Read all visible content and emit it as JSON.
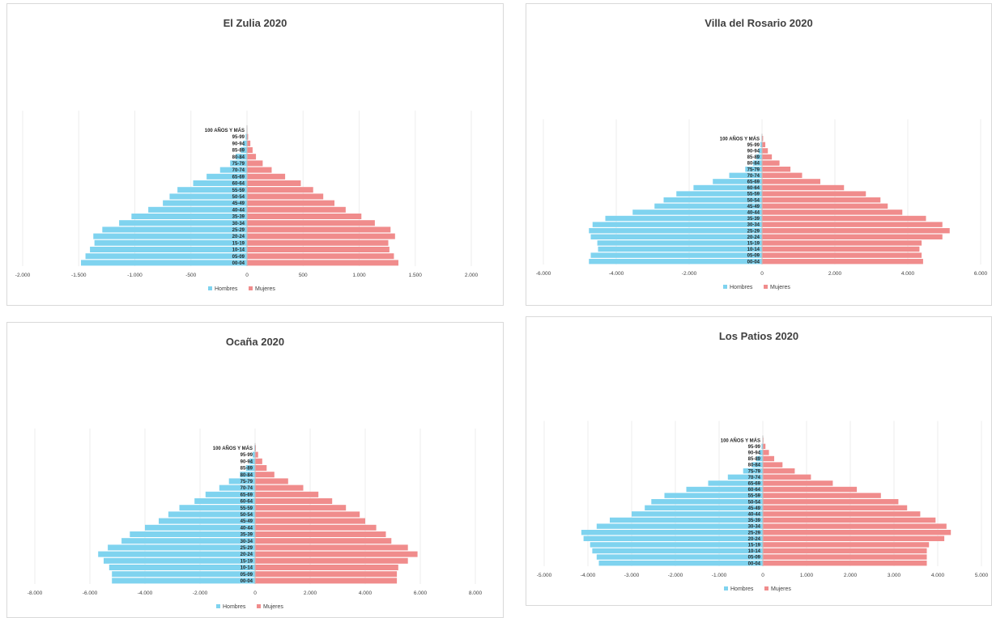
{
  "colors": {
    "hombres": "#7fd3ef",
    "mujeres": "#f08c8c"
  },
  "chart_data": [
    {
      "type": "bar",
      "orientation": "horizontal",
      "stacked": "population-pyramid",
      "title": "El Zulia 2020",
      "categories": [
        "00-04",
        "05-09",
        "10-14",
        "15-19",
        "20-24",
        "25-29",
        "30-34",
        "35-39",
        "40-44",
        "45-49",
        "50-54",
        "55-59",
        "60-64",
        "65-69",
        "70-74",
        "75-79",
        "80-84",
        "85-89",
        "90-94",
        "95-99",
        "100 AÑOS Y MÁS"
      ],
      "series": [
        {
          "name": "Hombres",
          "values": [
            -1480,
            -1440,
            -1400,
            -1360,
            -1370,
            -1290,
            -1140,
            -1030,
            -880,
            -750,
            -690,
            -620,
            -480,
            -360,
            -240,
            -150,
            -100,
            -55,
            -35,
            -12,
            -4
          ]
        },
        {
          "name": "Mujeres",
          "values": [
            1350,
            1310,
            1270,
            1260,
            1320,
            1280,
            1140,
            1020,
            880,
            780,
            680,
            590,
            480,
            340,
            220,
            140,
            80,
            50,
            30,
            10,
            4
          ]
        }
      ],
      "xlim": [
        -2000,
        2000
      ],
      "xticks": [
        -2000,
        -1500,
        -1000,
        -500,
        0,
        500,
        1000,
        1500,
        2000
      ],
      "xtick_labels": [
        "-2.000",
        "-1.500",
        "-1.000",
        "-500",
        "0",
        "500",
        "1.000",
        "1.500",
        "2.000"
      ],
      "legend": "bottom",
      "grid": true
    },
    {
      "type": "bar",
      "orientation": "horizontal",
      "stacked": "population-pyramid",
      "title": "Villa del Rosario 2020",
      "categories": [
        "00-04",
        "05-09",
        "10-14",
        "15-19",
        "20-24",
        "25-29",
        "30-34",
        "35-39",
        "40-44",
        "45-49",
        "50-54",
        "55-59",
        "60-64",
        "65-69",
        "70-74",
        "75-79",
        "80-84",
        "85-89",
        "90-94",
        "95-99",
        "100 AÑOS Y MÁS"
      ],
      "series": [
        {
          "name": "Hombres",
          "values": [
            -4750,
            -4700,
            -4500,
            -4520,
            -4700,
            -4750,
            -4650,
            -4300,
            -3550,
            -2950,
            -2700,
            -2350,
            -1880,
            -1350,
            -900,
            -460,
            -250,
            -160,
            -90,
            -45,
            -15
          ]
        },
        {
          "name": "Mujeres",
          "values": [
            4420,
            4380,
            4320,
            4380,
            4950,
            5150,
            4950,
            4500,
            3850,
            3450,
            3250,
            2850,
            2250,
            1600,
            1100,
            780,
            480,
            270,
            160,
            90,
            30
          ]
        }
      ],
      "xlim": [
        -6000,
        6000
      ],
      "xticks": [
        -6000,
        -4000,
        -2000,
        0,
        2000,
        4000,
        6000
      ],
      "xtick_labels": [
        "-6.000",
        "-4.000",
        "-2.000",
        "0",
        "2.000",
        "4.000",
        "6.000"
      ],
      "legend": "bottom",
      "grid": true
    },
    {
      "type": "bar",
      "orientation": "horizontal",
      "stacked": "population-pyramid",
      "title": "Ocaña 2020",
      "categories": [
        "00-04",
        "05-09",
        "10-14",
        "15-19",
        "20-24",
        "25-29",
        "30-34",
        "35-39",
        "40-44",
        "45-49",
        "50-54",
        "55-59",
        "60-64",
        "65-69",
        "70-74",
        "75-79",
        "80-84",
        "85-89",
        "90-94",
        "95-99",
        "100 AÑOS Y MÁS"
      ],
      "series": [
        {
          "name": "Hombres",
          "values": [
            -5200,
            -5200,
            -5300,
            -5500,
            -5700,
            -5350,
            -4850,
            -4550,
            -4000,
            -3500,
            -3150,
            -2750,
            -2200,
            -1800,
            -1300,
            -950,
            -550,
            -330,
            -200,
            -90,
            -25
          ]
        },
        {
          "name": "Mujeres",
          "values": [
            5150,
            5150,
            5200,
            5550,
            5900,
            5550,
            4950,
            4750,
            4400,
            4000,
            3800,
            3300,
            2800,
            2300,
            1750,
            1200,
            700,
            420,
            260,
            110,
            30
          ]
        }
      ],
      "xlim": [
        -8000,
        8000
      ],
      "xticks": [
        -8000,
        -6000,
        -4000,
        -2000,
        0,
        2000,
        4000,
        6000,
        8000
      ],
      "xtick_labels": [
        "-8.000",
        "-6.000",
        "-4.000",
        "-2.000",
        "0",
        "2.000",
        "4.000",
        "6.000",
        "8.000"
      ],
      "legend": "bottom",
      "grid": true
    },
    {
      "type": "bar",
      "orientation": "horizontal",
      "stacked": "population-pyramid",
      "title": "Los Patios 2020",
      "categories": [
        "00-04",
        "05-09",
        "10-14",
        "15-19",
        "20-24",
        "25-29",
        "30-34",
        "35-39",
        "40-44",
        "45-49",
        "50-54",
        "55-59",
        "60-64",
        "65-69",
        "70-74",
        "75-79",
        "80-84",
        "85-89",
        "90-94",
        "95-99",
        "100 AÑOS Y MÁS"
      ],
      "series": [
        {
          "name": "Hombres",
          "values": [
            -3750,
            -3800,
            -3900,
            -3950,
            -4100,
            -4150,
            -3800,
            -3500,
            -3000,
            -2700,
            -2550,
            -2250,
            -1750,
            -1250,
            -800,
            -450,
            -250,
            -150,
            -80,
            -30,
            -10
          ]
        },
        {
          "name": "Mujeres",
          "values": [
            3750,
            3750,
            3750,
            3800,
            4150,
            4300,
            4200,
            3950,
            3600,
            3300,
            3100,
            2700,
            2150,
            1600,
            1100,
            730,
            450,
            260,
            140,
            60,
            15
          ]
        }
      ],
      "xlim": [
        -5000,
        5000
      ],
      "xticks": [
        -5000,
        -4000,
        -3000,
        -2000,
        -1000,
        0,
        1000,
        2000,
        3000,
        4000,
        5000
      ],
      "xtick_labels": [
        "-5.000",
        "-4.000",
        "-3.000",
        "-2.000",
        "-1.000",
        "0",
        "1.000",
        "2.000",
        "3.000",
        "4.000",
        "5.000"
      ],
      "legend": "bottom",
      "grid": true
    }
  ]
}
